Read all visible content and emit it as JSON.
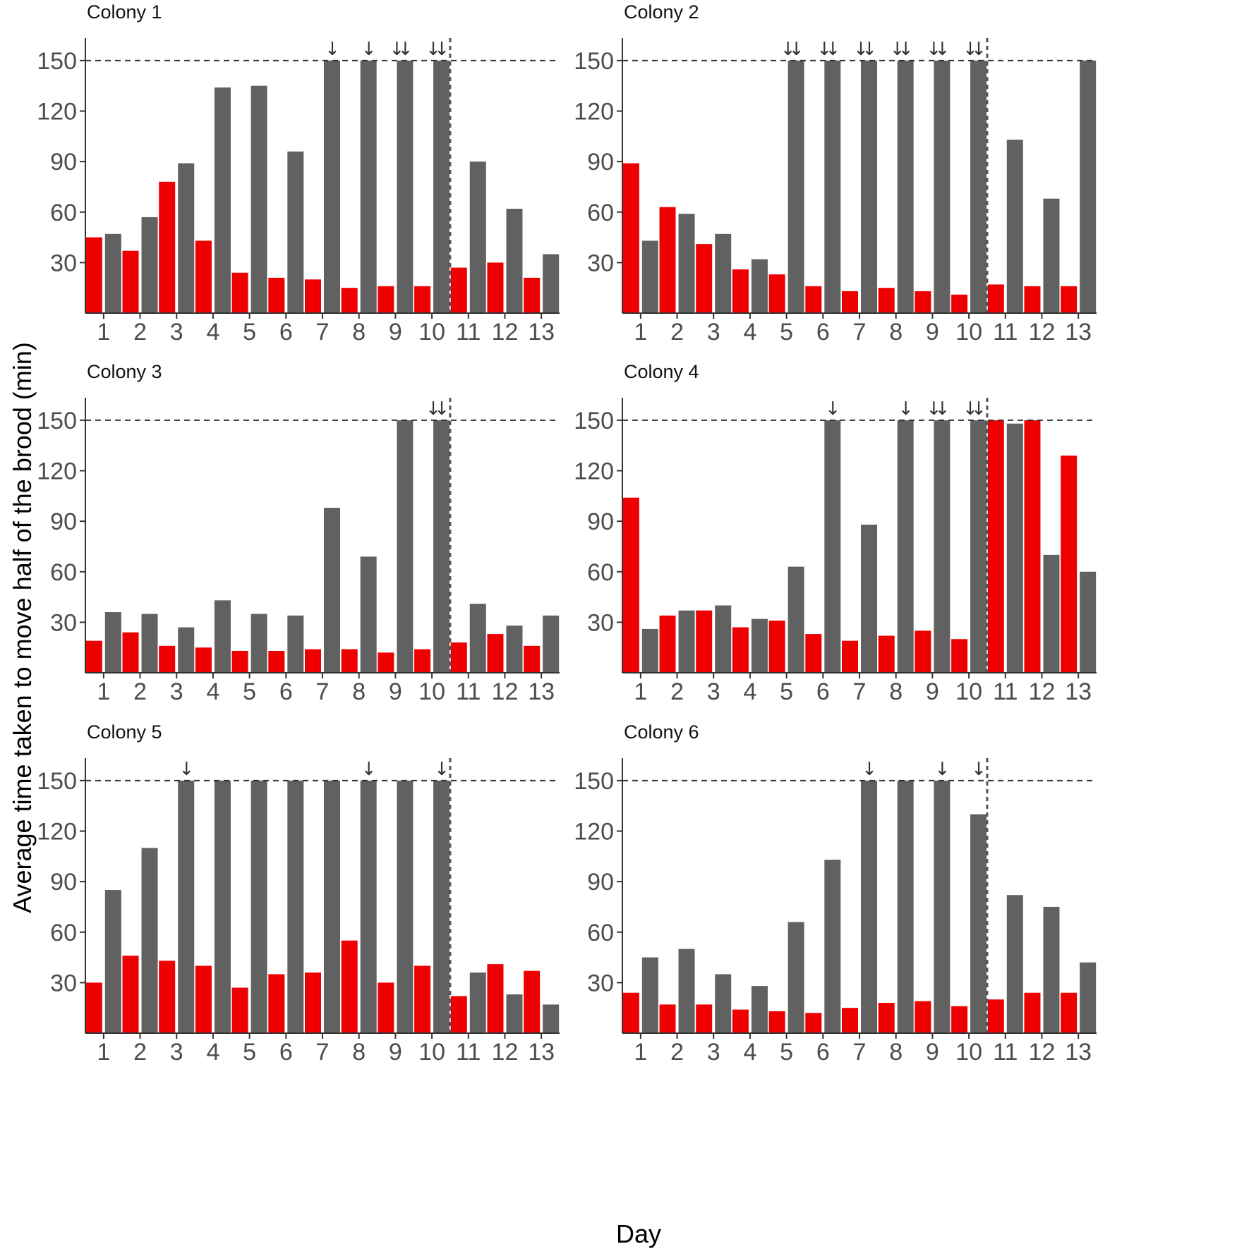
{
  "chart_data": {
    "type": "bar",
    "xlabel": "Day",
    "ylabel": "Average time taken to move half of the brood (min)",
    "ylim": [
      0,
      160
    ],
    "yticks": [
      "30",
      "60",
      "90",
      "120",
      "150"
    ],
    "categories": [
      "1",
      "2",
      "3",
      "4",
      "5",
      "6",
      "7",
      "8",
      "9",
      "10",
      "11",
      "12",
      "13"
    ],
    "reference_line_y": 150,
    "divider_after_category": "10",
    "series_colors": [
      "#ee0000",
      "#616161"
    ],
    "grid": false,
    "panels": [
      {
        "title": "Colony 1",
        "series": [
          {
            "values": [
              45,
              37,
              78,
              43,
              24,
              21,
              20,
              15,
              16,
              16,
              27,
              30,
              21
            ]
          },
          {
            "values": [
              47,
              57,
              89,
              134,
              135,
              96,
              150,
              150,
              150,
              150,
              90,
              62,
              35
            ]
          }
        ],
        "arrows": [
          {
            "day": 7,
            "count": 1
          },
          {
            "day": 8,
            "count": 1
          },
          {
            "day": 9,
            "count": 2
          },
          {
            "day": 10,
            "count": 2
          }
        ]
      },
      {
        "title": "Colony 2",
        "series": [
          {
            "values": [
              89,
              63,
              41,
              26,
              23,
              16,
              13,
              15,
              13,
              11,
              17,
              16,
              16
            ]
          },
          {
            "values": [
              43,
              59,
              47,
              32,
              150,
              150,
              150,
              150,
              150,
              150,
              103,
              68,
              150
            ]
          }
        ],
        "arrows": [
          {
            "day": 5,
            "count": 2
          },
          {
            "day": 6,
            "count": 2
          },
          {
            "day": 7,
            "count": 2
          },
          {
            "day": 8,
            "count": 2
          },
          {
            "day": 9,
            "count": 2
          },
          {
            "day": 10,
            "count": 2
          }
        ]
      },
      {
        "title": "Colony 3",
        "series": [
          {
            "values": [
              19,
              24,
              16,
              15,
              13,
              13,
              14,
              14,
              12,
              14,
              18,
              23,
              16
            ]
          },
          {
            "values": [
              36,
              35,
              27,
              43,
              35,
              34,
              98,
              69,
              150,
              150,
              41,
              28,
              34
            ]
          }
        ],
        "arrows": [
          {
            "day": 10,
            "count": 2
          }
        ]
      },
      {
        "title": "Colony 4",
        "series": [
          {
            "values": [
              104,
              34,
              37,
              27,
              31,
              23,
              19,
              22,
              25,
              20,
              150,
              150,
              129
            ]
          },
          {
            "values": [
              26,
              37,
              40,
              32,
              63,
              150,
              88,
              150,
              150,
              150,
              148,
              70,
              60
            ]
          }
        ],
        "arrows": [
          {
            "day": 6,
            "count": 1
          },
          {
            "day": 8,
            "count": 1
          },
          {
            "day": 9,
            "count": 2
          },
          {
            "day": 10,
            "count": 2
          }
        ]
      },
      {
        "title": "Colony 5",
        "series": [
          {
            "values": [
              30,
              46,
              43,
              40,
              27,
              35,
              36,
              55,
              30,
              40,
              22,
              41,
              37
            ]
          },
          {
            "values": [
              85,
              110,
              150,
              150,
              150,
              150,
              150,
              150,
              150,
              150,
              36,
              23,
              17
            ]
          }
        ],
        "arrows": [
          {
            "day": 3,
            "count": 1
          },
          {
            "day": 8,
            "count": 1
          },
          {
            "day": 10,
            "count": 1
          }
        ]
      },
      {
        "title": "Colony 6",
        "series": [
          {
            "values": [
              24,
              17,
              17,
              14,
              13,
              12,
              15,
              18,
              19,
              16,
              20,
              24,
              24
            ]
          },
          {
            "values": [
              45,
              50,
              35,
              28,
              66,
              103,
              150,
              150,
              150,
              130,
              82,
              75,
              42
            ]
          }
        ],
        "arrows": [
          {
            "day": 7,
            "count": 1
          },
          {
            "day": 9,
            "count": 1
          },
          {
            "day": 10,
            "count": 1
          }
        ]
      }
    ]
  }
}
